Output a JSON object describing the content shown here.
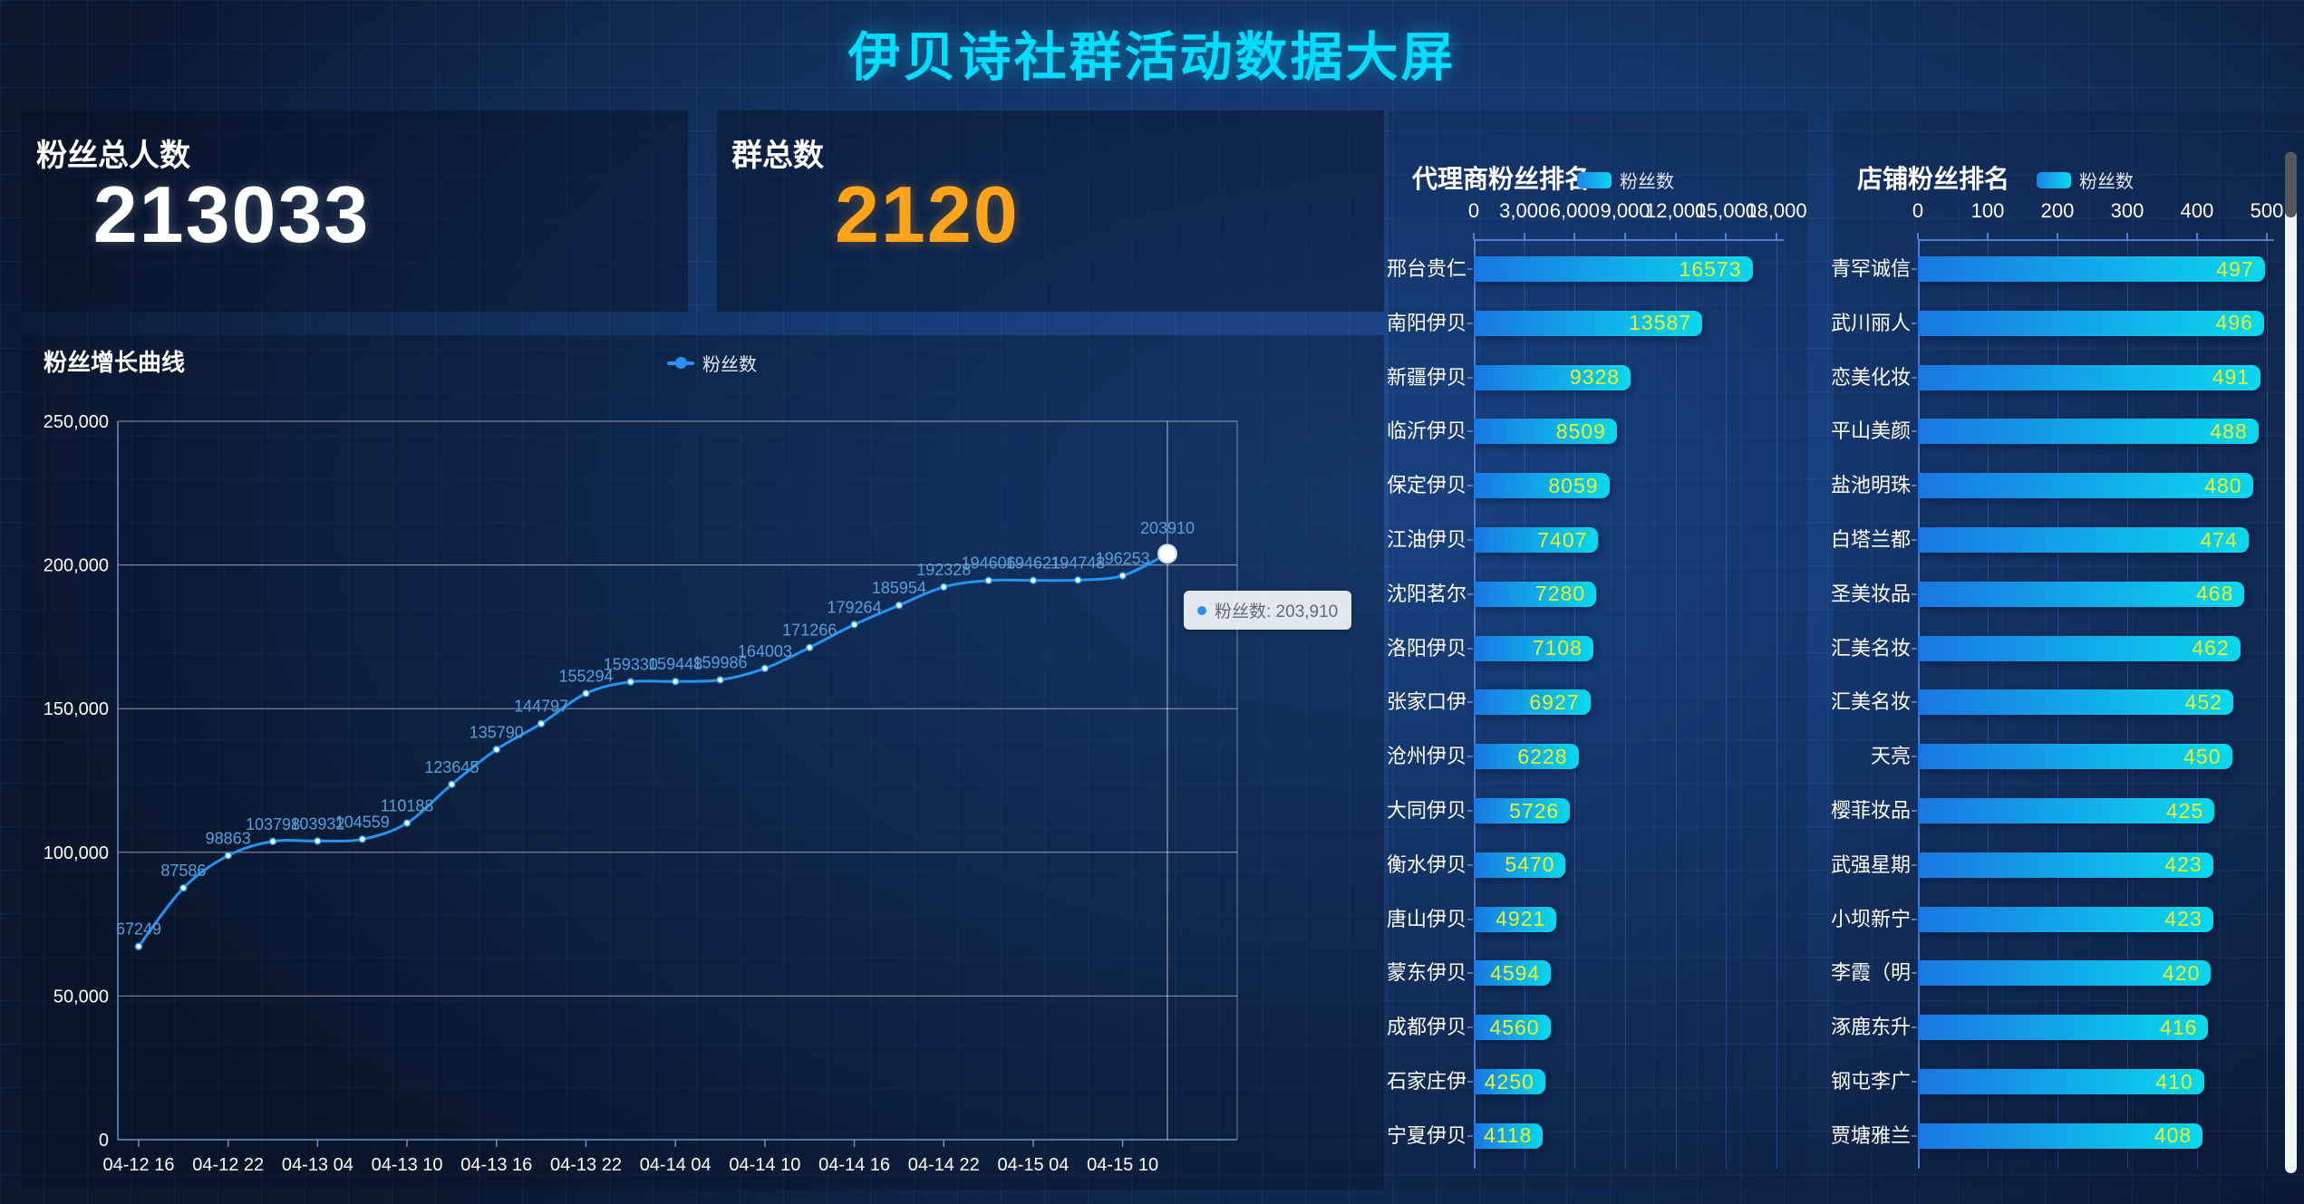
{
  "page_title": "伊贝诗社群活动数据大屏",
  "stat_cards": [
    {
      "label": "粉丝总人数",
      "value": "213033",
      "value_color": "#ffffff"
    },
    {
      "label": "群总数",
      "value": "2120",
      "value_color": "#ffa31a"
    }
  ],
  "line_panel": {
    "tooltip_text": "粉丝数: 203,910"
  },
  "colors": {
    "title_cyan": "#00ddff",
    "value_orange": "#ffa31a",
    "line_blue": "#2196f3",
    "point_label_blue": "#56a0da",
    "bar_gradient_start": "#1a77e3",
    "bar_gradient_end": "#09d8ee",
    "bar_value_yellow": "#e9f329"
  },
  "chart_data": [
    {
      "type": "line",
      "title": "粉丝增长曲线",
      "legend_position": "top-center",
      "grid": "horizontal",
      "smooth": true,
      "series": [
        {
          "name": "粉丝数",
          "values": [
            67249,
            87586,
            98863,
            103798,
            103932,
            104559,
            110188,
            123645,
            135790,
            144797,
            155294,
            159330,
            159448,
            159986,
            164003,
            171266,
            179264,
            185954,
            192328,
            194606,
            194621,
            194748,
            196253,
            203910
          ]
        }
      ],
      "x_tick_labels": [
        "04-12 16",
        "04-12 22",
        "04-13 04",
        "04-13 10",
        "04-13 16",
        "04-13 22",
        "04-14 04",
        "04-14 10",
        "04-14 16",
        "04-14 22",
        "04-15 04",
        "04-15 10"
      ],
      "tick_every": 2,
      "y_tick_labels": [
        "0",
        "50,000",
        "100,000",
        "150,000",
        "200,000",
        "250,000"
      ],
      "ylim": [
        0,
        250000
      ],
      "highlight": {
        "index": 23,
        "value_label": "203910",
        "tooltip": "粉丝数: 203,910"
      }
    },
    {
      "type": "bar",
      "orientation": "horizontal",
      "title": "代理商粉丝排名",
      "legend": "粉丝数",
      "xlim": [
        0,
        18000
      ],
      "x_tick_labels": [
        "0",
        "3,000",
        "6,000",
        "9,000",
        "12,000",
        "15,000",
        "18,000"
      ],
      "categories": [
        "邢台贵仁",
        "南阳伊贝",
        "新疆伊贝",
        "临沂伊贝",
        "保定伊贝",
        "江油伊贝",
        "沈阳茗尔",
        "洛阳伊贝",
        "张家口伊",
        "沧州伊贝",
        "大同伊贝",
        "衡水伊贝",
        "唐山伊贝",
        "蒙东伊贝",
        "成都伊贝",
        "石家庄伊",
        "宁夏伊贝"
      ],
      "values": [
        16573,
        13587,
        9328,
        8509,
        8059,
        7407,
        7280,
        7108,
        6927,
        6228,
        5726,
        5470,
        4921,
        4594,
        4560,
        4250,
        4118
      ]
    },
    {
      "type": "bar",
      "orientation": "horizontal",
      "title": "店铺粉丝排名",
      "legend": "粉丝数",
      "xlim": [
        0,
        500
      ],
      "x_tick_labels": [
        "0",
        "100",
        "200",
        "300",
        "400",
        "500"
      ],
      "scrollbar": true,
      "categories": [
        "青罕诚信",
        "武川丽人",
        "恋美化妆",
        "平山美颜",
        "盐池明珠",
        "白塔兰都",
        "圣美妆品",
        "汇美名妆",
        "汇美名妆",
        "天亮",
        "樱菲妆品",
        "武强星期",
        "小坝新宁",
        "李霞（明",
        "涿鹿东升",
        "钢屯李广",
        "贾塘雅兰"
      ],
      "values": [
        497,
        496,
        491,
        488,
        480,
        474,
        468,
        462,
        452,
        450,
        425,
        423,
        423,
        420,
        416,
        410,
        408
      ]
    }
  ]
}
